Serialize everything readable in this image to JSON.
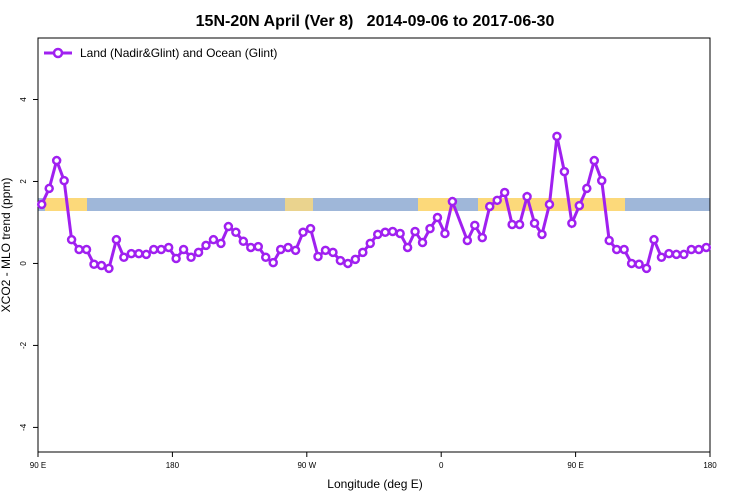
{
  "chart_data": {
    "type": "line",
    "title": "15N-20N April (Ver 8)   2014-09-06 to 2017-06-30",
    "x_label": "Longitude (deg E)",
    "y_label": "XCO2 - MLO trend (ppm)",
    "xlim": [
      90,
      540
    ],
    "ylim": [
      -4.6,
      5.5
    ],
    "xticks": [
      {
        "value": 90,
        "label": "90 E"
      },
      180,
      {
        "value": 270,
        "label": "90 W"
      },
      {
        "value": 360,
        "label": "0"
      },
      {
        "value": 450,
        "label": "90 E"
      },
      {
        "value": 540,
        "label": "180"
      }
    ],
    "yticks": [
      -4,
      -2,
      0,
      2,
      4
    ],
    "legend": "top-left",
    "x": [
      92.5,
      97.5,
      102.5,
      107.5,
      112.5,
      117.5,
      122.5,
      127.5,
      132.5,
      137.5,
      142.5,
      147.5,
      152.5,
      157.5,
      162.5,
      167.5,
      172.5,
      177.5,
      182.5,
      187.5,
      192.5,
      197.5,
      202.5,
      207.5,
      212.5,
      217.5,
      222.5,
      227.5,
      232.5,
      237.5,
      242.5,
      247.5,
      252.5,
      257.5,
      262.5,
      267.5,
      272.5,
      277.5,
      282.5,
      287.5,
      292.5,
      297.5,
      302.5,
      307.5,
      312.5,
      317.5,
      322.5,
      327.5,
      332.5,
      337.5,
      342.5,
      347.5,
      352.5,
      357.5,
      362.5,
      367.5,
      377.5,
      382.5,
      387.5,
      392.5,
      397.5,
      402.5,
      407.5,
      412.5,
      417.5,
      422.5,
      427.5,
      432.5,
      437.5,
      442.5,
      447.5,
      452.5,
      457.5,
      462.5,
      467.5,
      472.5,
      477.5,
      482.5,
      487.5,
      492.5,
      497.5,
      502.5,
      507.5,
      512.5,
      517.5,
      522.5,
      527.5,
      532.5,
      537.5
    ],
    "series": [
      {
        "name": "Land (Nadir&Glint) and Ocean (Glint)",
        "color": "#a020f0",
        "values": [
          1.44,
          1.83,
          2.51,
          2.02,
          0.58,
          0.34,
          0.34,
          -0.02,
          -0.05,
          -0.12,
          0.58,
          0.15,
          0.24,
          0.24,
          0.22,
          0.34,
          0.34,
          0.39,
          0.12,
          0.34,
          0.15,
          0.27,
          0.44,
          0.58,
          0.49,
          0.9,
          0.76,
          0.54,
          0.39,
          0.41,
          0.15,
          0.02,
          0.34,
          0.39,
          0.32,
          0.76,
          0.85,
          0.17,
          0.32,
          0.27,
          0.07,
          0.0,
          0.1,
          0.27,
          0.49,
          0.71,
          0.76,
          0.78,
          0.73,
          0.39,
          0.78,
          0.51,
          0.85,
          1.12,
          0.73,
          1.51,
          0.56,
          0.93,
          0.63,
          1.39,
          1.54,
          1.73,
          0.95,
          0.95,
          1.63,
          0.98,
          0.71,
          1.44,
          3.1,
          2.24,
          0.98,
          1.41,
          1.83,
          2.51,
          2.02,
          0.56,
          0.34,
          0.34,
          0.0,
          -0.02,
          -0.12,
          0.58,
          0.15,
          0.24,
          0.22,
          0.22,
          0.34,
          0.34,
          0.39
        ]
      }
    ]
  }
}
